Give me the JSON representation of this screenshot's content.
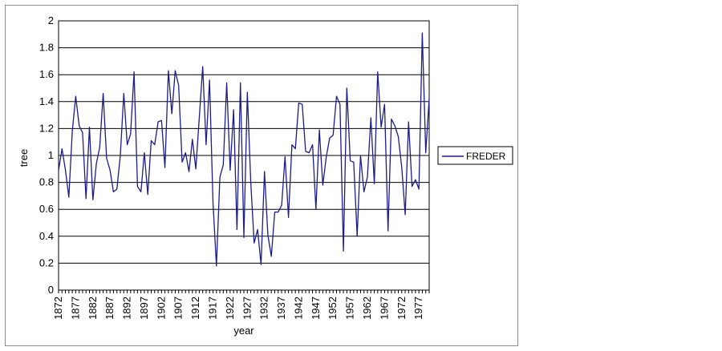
{
  "chart_data": {
    "type": "line",
    "title": "",
    "xlabel": "year",
    "ylabel": "tree",
    "ylim": [
      0,
      2
    ],
    "yticks": [
      0,
      0.2,
      0.4,
      0.6,
      0.8,
      1,
      1.2,
      1.4,
      1.6,
      1.8,
      2
    ],
    "ytick_labels": [
      "0",
      "0.2",
      "0.4",
      "0.6",
      "0.8",
      "1",
      "1.2",
      "1.4",
      "1.6",
      "1.8",
      "2"
    ],
    "xlim": [
      1872,
      1980
    ],
    "xtick_labels": [
      "1872",
      "1877",
      "1882",
      "1887",
      "1892",
      "1897",
      "1902",
      "1907",
      "1912",
      "1917",
      "1922",
      "1927",
      "1932",
      "1937",
      "1942",
      "1947",
      "1952",
      "1957",
      "1962",
      "1967",
      "1972",
      "1977"
    ],
    "grid": "horizontal",
    "legend_position": "right",
    "colors": {
      "series": "#1c1c8c",
      "grid": "#000000",
      "axis": "#000000"
    },
    "series": [
      {
        "name": "FREDER",
        "x": [
          1872,
          1873,
          1874,
          1875,
          1876,
          1877,
          1878,
          1879,
          1880,
          1881,
          1882,
          1883,
          1884,
          1885,
          1886,
          1887,
          1888,
          1889,
          1890,
          1891,
          1892,
          1893,
          1894,
          1895,
          1896,
          1897,
          1898,
          1899,
          1900,
          1901,
          1902,
          1903,
          1904,
          1905,
          1906,
          1907,
          1908,
          1909,
          1910,
          1911,
          1912,
          1913,
          1914,
          1915,
          1916,
          1917,
          1918,
          1919,
          1920,
          1921,
          1922,
          1923,
          1924,
          1925,
          1926,
          1927,
          1928,
          1929,
          1930,
          1931,
          1932,
          1933,
          1934,
          1935,
          1936,
          1937,
          1938,
          1939,
          1940,
          1941,
          1942,
          1943,
          1944,
          1945,
          1946,
          1947,
          1948,
          1949,
          1950,
          1951,
          1952,
          1953,
          1954,
          1955,
          1956,
          1957,
          1958,
          1959,
          1960,
          1961,
          1962,
          1963,
          1964,
          1965,
          1966,
          1967,
          1968,
          1969,
          1970,
          1971,
          1972,
          1973,
          1974,
          1975,
          1976,
          1977,
          1978,
          1979,
          1980
        ],
        "values": [
          0.89,
          1.05,
          0.89,
          0.69,
          1.18,
          1.44,
          1.22,
          1.17,
          0.68,
          1.21,
          0.67,
          0.94,
          1.06,
          1.46,
          0.98,
          0.89,
          0.73,
          0.75,
          1.0,
          1.46,
          1.08,
          1.16,
          1.62,
          0.77,
          0.73,
          1.02,
          0.71,
          1.11,
          1.08,
          1.25,
          1.26,
          0.91,
          1.63,
          1.31,
          1.63,
          1.52,
          0.95,
          1.02,
          0.88,
          1.12,
          0.9,
          1.28,
          1.66,
          1.08,
          1.56,
          0.65,
          0.18,
          0.84,
          0.93,
          1.54,
          0.89,
          1.34,
          0.45,
          1.54,
          0.39,
          1.47,
          0.8,
          0.35,
          0.45,
          0.19,
          0.88,
          0.41,
          0.25,
          0.58,
          0.58,
          0.63,
          0.99,
          0.54,
          1.08,
          1.05,
          1.39,
          1.38,
          1.03,
          1.02,
          1.08,
          0.6,
          1.19,
          0.78,
          0.99,
          1.13,
          1.15,
          1.44,
          1.38,
          0.29,
          1.5,
          0.96,
          0.95,
          0.4,
          1.0,
          0.73,
          0.84,
          1.28,
          0.79,
          1.62,
          1.21,
          1.38,
          0.44,
          1.27,
          1.22,
          1.14,
          0.91,
          0.56,
          1.25,
          0.77,
          0.82,
          0.75,
          1.91,
          1.02,
          1.42
        ]
      }
    ]
  }
}
